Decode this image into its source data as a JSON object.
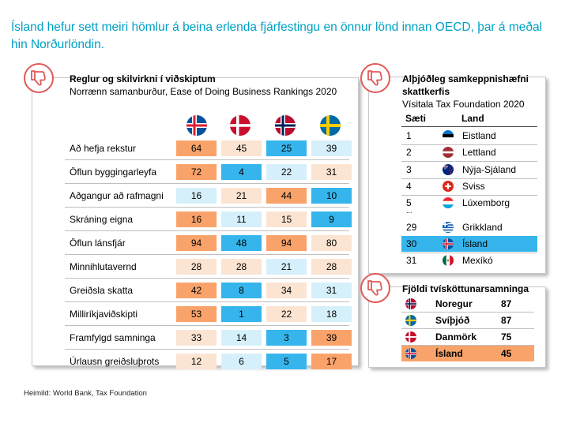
{
  "headline": "Ísland hefur sett meiri hömlur á beina erlenda fjárfestingu en önnur lönd innan OECD, þar á meðal hin Norðurlöndin.",
  "colors": {
    "headline": "#00a0c6",
    "badge": "#e05a5a",
    "orange": "#f9a36b",
    "peach": "#fce4d3",
    "lightblue": "#d6f0fb",
    "blue": "#35b5ec"
  },
  "badge_icon": "thumbs-down-icon",
  "doing_business": {
    "title": "Reglur og skilvirkni í viðskiptum",
    "subtitle": "Norrænn samanburður, Ease of Doing Business Rankings 2020",
    "flags": [
      "iceland-flag-icon",
      "denmark-flag-icon",
      "norway-flag-icon",
      "sweden-flag-icon"
    ],
    "rows": [
      {
        "label": "Að hefja rekstur",
        "values": [
          "64",
          "45",
          "25",
          "39"
        ],
        "tones": [
          "orange",
          "peach",
          "blue",
          "lightblue"
        ]
      },
      {
        "label": "Öflun byggingarleyfa",
        "values": [
          "72",
          "4",
          "22",
          "31"
        ],
        "tones": [
          "orange",
          "blue",
          "lightblue",
          "peach"
        ]
      },
      {
        "label": "Aðgangur að rafmagni",
        "values": [
          "16",
          "21",
          "44",
          "10"
        ],
        "tones": [
          "lightblue",
          "peach",
          "orange",
          "blue"
        ]
      },
      {
        "label": "Skráning eigna",
        "values": [
          "16",
          "11",
          "15",
          "9"
        ],
        "tones": [
          "orange",
          "lightblue",
          "peach",
          "blue"
        ]
      },
      {
        "label": "Öflun lánsfjár",
        "values": [
          "94",
          "48",
          "94",
          "80"
        ],
        "tones": [
          "orange",
          "blue",
          "orange",
          "peach"
        ]
      },
      {
        "label": "Minnihlutavernd",
        "values": [
          "28",
          "28",
          "21",
          "28"
        ],
        "tones": [
          "peach",
          "peach",
          "lightblue",
          "peach"
        ]
      },
      {
        "label": "Greiðsla skatta",
        "values": [
          "42",
          "8",
          "34",
          "31"
        ],
        "tones": [
          "orange",
          "blue",
          "peach",
          "lightblue"
        ]
      },
      {
        "label": "Milliríkjaviðskipti",
        "values": [
          "53",
          "1",
          "22",
          "18"
        ],
        "tones": [
          "orange",
          "blue",
          "peach",
          "lightblue"
        ]
      },
      {
        "label": "Framfylgd samninga",
        "values": [
          "33",
          "14",
          "3",
          "39"
        ],
        "tones": [
          "peach",
          "lightblue",
          "blue",
          "orange"
        ]
      },
      {
        "label": "Úrlausn greiðsluþrots",
        "values": [
          "12",
          "6",
          "5",
          "17"
        ],
        "tones": [
          "peach",
          "lightblue",
          "blue",
          "orange"
        ]
      }
    ]
  },
  "tax": {
    "title_line1": "Alþjóðleg samkeppnishæfni",
    "title_line2": "skattkerfis",
    "subtitle": "Vísitala Tax Foundation 2020",
    "col_rank": "Sæti",
    "col_country": "Land",
    "ellipsis": "...",
    "rows": [
      {
        "rank": "1",
        "country": "Eistland",
        "flag": "estonia-flag-icon",
        "highlight": false
      },
      {
        "rank": "2",
        "country": "Lettland",
        "flag": "latvia-flag-icon",
        "highlight": false
      },
      {
        "rank": "3",
        "country": "Nýja-Sjáland",
        "flag": "new-zealand-flag-icon",
        "highlight": false
      },
      {
        "rank": "4",
        "country": "Sviss",
        "flag": "switzerland-flag-icon",
        "highlight": false
      },
      {
        "rank": "5",
        "country": "Lúxemborg",
        "flag": "luxembourg-flag-icon",
        "highlight": false
      },
      {
        "rank": "29",
        "country": "Grikkland",
        "flag": "greece-flag-icon",
        "highlight": false
      },
      {
        "rank": "30",
        "country": "Ísland",
        "flag": "iceland-flag-icon",
        "highlight": true
      },
      {
        "rank": "31",
        "country": "Mexíkó",
        "flag": "mexico-flag-icon",
        "highlight": false
      }
    ]
  },
  "double_tax": {
    "title": "Fjöldi tvísköttunarsamninga",
    "rows": [
      {
        "country": "Noregur",
        "value": "87",
        "flag": "norway-flag-icon",
        "highlight": false
      },
      {
        "country": "Svíþjóð",
        "value": "87",
        "flag": "sweden-flag-icon",
        "highlight": false
      },
      {
        "country": "Danmörk",
        "value": "75",
        "flag": "denmark-flag-icon",
        "highlight": false
      },
      {
        "country": "Ísland",
        "value": "45",
        "flag": "iceland-flag-icon",
        "highlight": true
      }
    ]
  },
  "source": "Heimild: World Bank, Tax Foundation"
}
